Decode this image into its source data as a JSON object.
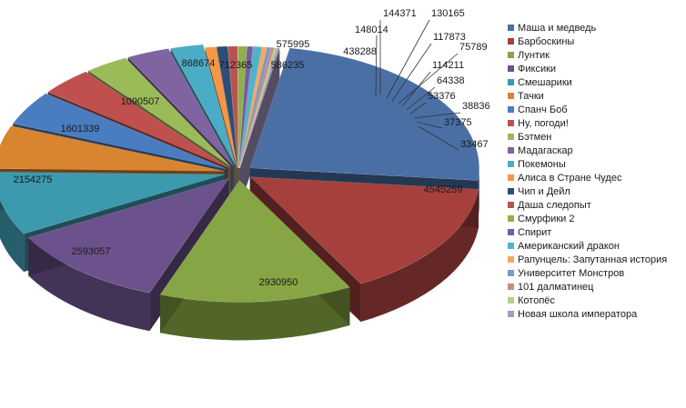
{
  "chart_data": {
    "type": "pie",
    "style": "3d-exploded",
    "title": "",
    "legend_position": "right",
    "series": [
      {
        "name": "Маша и медведь",
        "value": 4545259,
        "color": "#4a6fa5"
      },
      {
        "name": "Барбоскины",
        "value": 2930950,
        "color": "#a5403d"
      },
      {
        "name": "Лунтик",
        "value": 2593057,
        "color": "#86a544"
      },
      {
        "name": "Фиксики",
        "value": 2154275,
        "color": "#6c528c"
      },
      {
        "name": "Смешарики",
        "value": 1601339,
        "color": "#3d99ad"
      },
      {
        "name": "Тачки",
        "value": 1090507,
        "color": "#d9842e"
      },
      {
        "name": "Спанч Боб",
        "value": 868674,
        "color": "#4a7cc0"
      },
      {
        "name": "Ну, погоди!",
        "value": 712365,
        "color": "#c0504d"
      },
      {
        "name": "Бэтмен",
        "value": 586235,
        "color": "#9bbb59"
      },
      {
        "name": "Мадагаскар",
        "value": 575995,
        "color": "#8064a2"
      },
      {
        "name": "Покемоны",
        "value": 438288,
        "color": "#4bacc6"
      },
      {
        "name": "Алиса в Стране Чудес",
        "value": 148014,
        "color": "#f79646"
      },
      {
        "name": "Чип и Дейл",
        "value": 144371,
        "color": "#2c4d75"
      },
      {
        "name": "Даша следопыт",
        "value": 130165,
        "color": "#b85450"
      },
      {
        "name": "Смурфики 2",
        "value": 117873,
        "color": "#8fb04a"
      },
      {
        "name": "Спирит",
        "value": 75789,
        "color": "#7a5aa0"
      },
      {
        "name": "Американский дракон",
        "value": 114211,
        "color": "#4fb3cc"
      },
      {
        "name": "Рапунцель: Запутанная история",
        "value": 64338,
        "color": "#f5a95e"
      },
      {
        "name": "Университет Монстров",
        "value": 53376,
        "color": "#7f98c5"
      },
      {
        "name": "101 далматинец",
        "value": 38836,
        "color": "#c98a88"
      },
      {
        "name": "Котопёс",
        "value": 37375,
        "color": "#b9d08f"
      },
      {
        "name": "Новая школа императора",
        "value": 33467,
        "color": "#a898c2"
      }
    ]
  }
}
